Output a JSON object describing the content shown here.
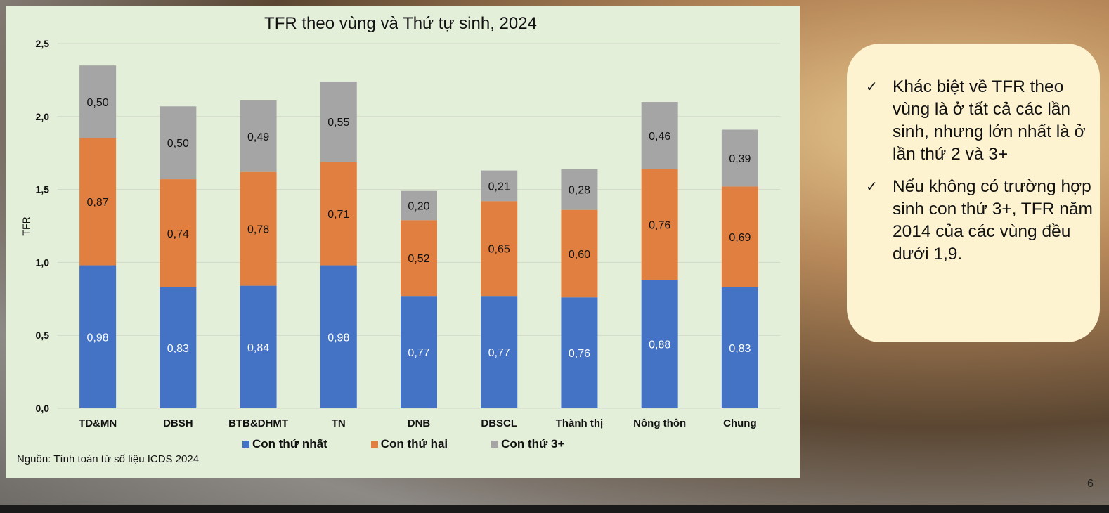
{
  "chart_data": {
    "type": "bar",
    "stacked": true,
    "title": "TFR theo vùng và Thứ tự sinh, 2024",
    "ylabel": "TFR",
    "xlabel": "",
    "ylim": [
      0,
      2.5
    ],
    "yticks": [
      "0,0",
      "0,5",
      "1,0",
      "1,5",
      "2,0",
      "2,5"
    ],
    "ytick_values": [
      0,
      0.5,
      1.0,
      1.5,
      2.0,
      2.5
    ],
    "grid": true,
    "legend_position": "bottom",
    "categories": [
      "TD&MN",
      "DBSH",
      "BTB&DHMT",
      "TN",
      "DNB",
      "DBSCL",
      "Thành thị",
      "Nông thôn",
      "Chung"
    ],
    "series": [
      {
        "name": "Con thứ nhất",
        "color": "#4472c4",
        "label_color": "#ffffff",
        "values": [
          0.98,
          0.83,
          0.84,
          0.98,
          0.77,
          0.77,
          0.76,
          0.88,
          0.83
        ],
        "labels": [
          "0,98",
          "0,83",
          "0,84",
          "0,98",
          "0,77",
          "0,77",
          "0,76",
          "0,88",
          "0,83"
        ]
      },
      {
        "name": "Con thứ hai",
        "color": "#e07f3f",
        "label_color": "#111111",
        "values": [
          0.87,
          0.74,
          0.78,
          0.71,
          0.52,
          0.65,
          0.6,
          0.76,
          0.69
        ],
        "labels": [
          "0,87",
          "0,74",
          "0,78",
          "0,71",
          "0,52",
          "0,65",
          "0,60",
          "0,76",
          "0,69"
        ]
      },
      {
        "name": "Con thứ 3+",
        "color": "#a5a5a5",
        "label_color": "#111111",
        "values": [
          0.5,
          0.5,
          0.49,
          0.55,
          0.2,
          0.21,
          0.28,
          0.46,
          0.39
        ],
        "labels": [
          "0,50",
          "0,50",
          "0,49",
          "0,55",
          "0,20",
          "0,21",
          "0,28",
          "0,46",
          "0,39"
        ]
      }
    ]
  },
  "source": "Nguồn: Tính toán từ số liệu ICDS 2024",
  "callout": {
    "bullet_icon": "check-icon",
    "bullets": [
      "Khác biệt về TFR theo vùng là ở tất cả các lần sinh, nhưng lớn nhất là ở lần thứ 2 và 3+",
      "Nếu không có trường hợp sinh con thứ 3+, TFR năm 2014 của các vùng đều dưới 1,9."
    ]
  },
  "page_number": "6"
}
